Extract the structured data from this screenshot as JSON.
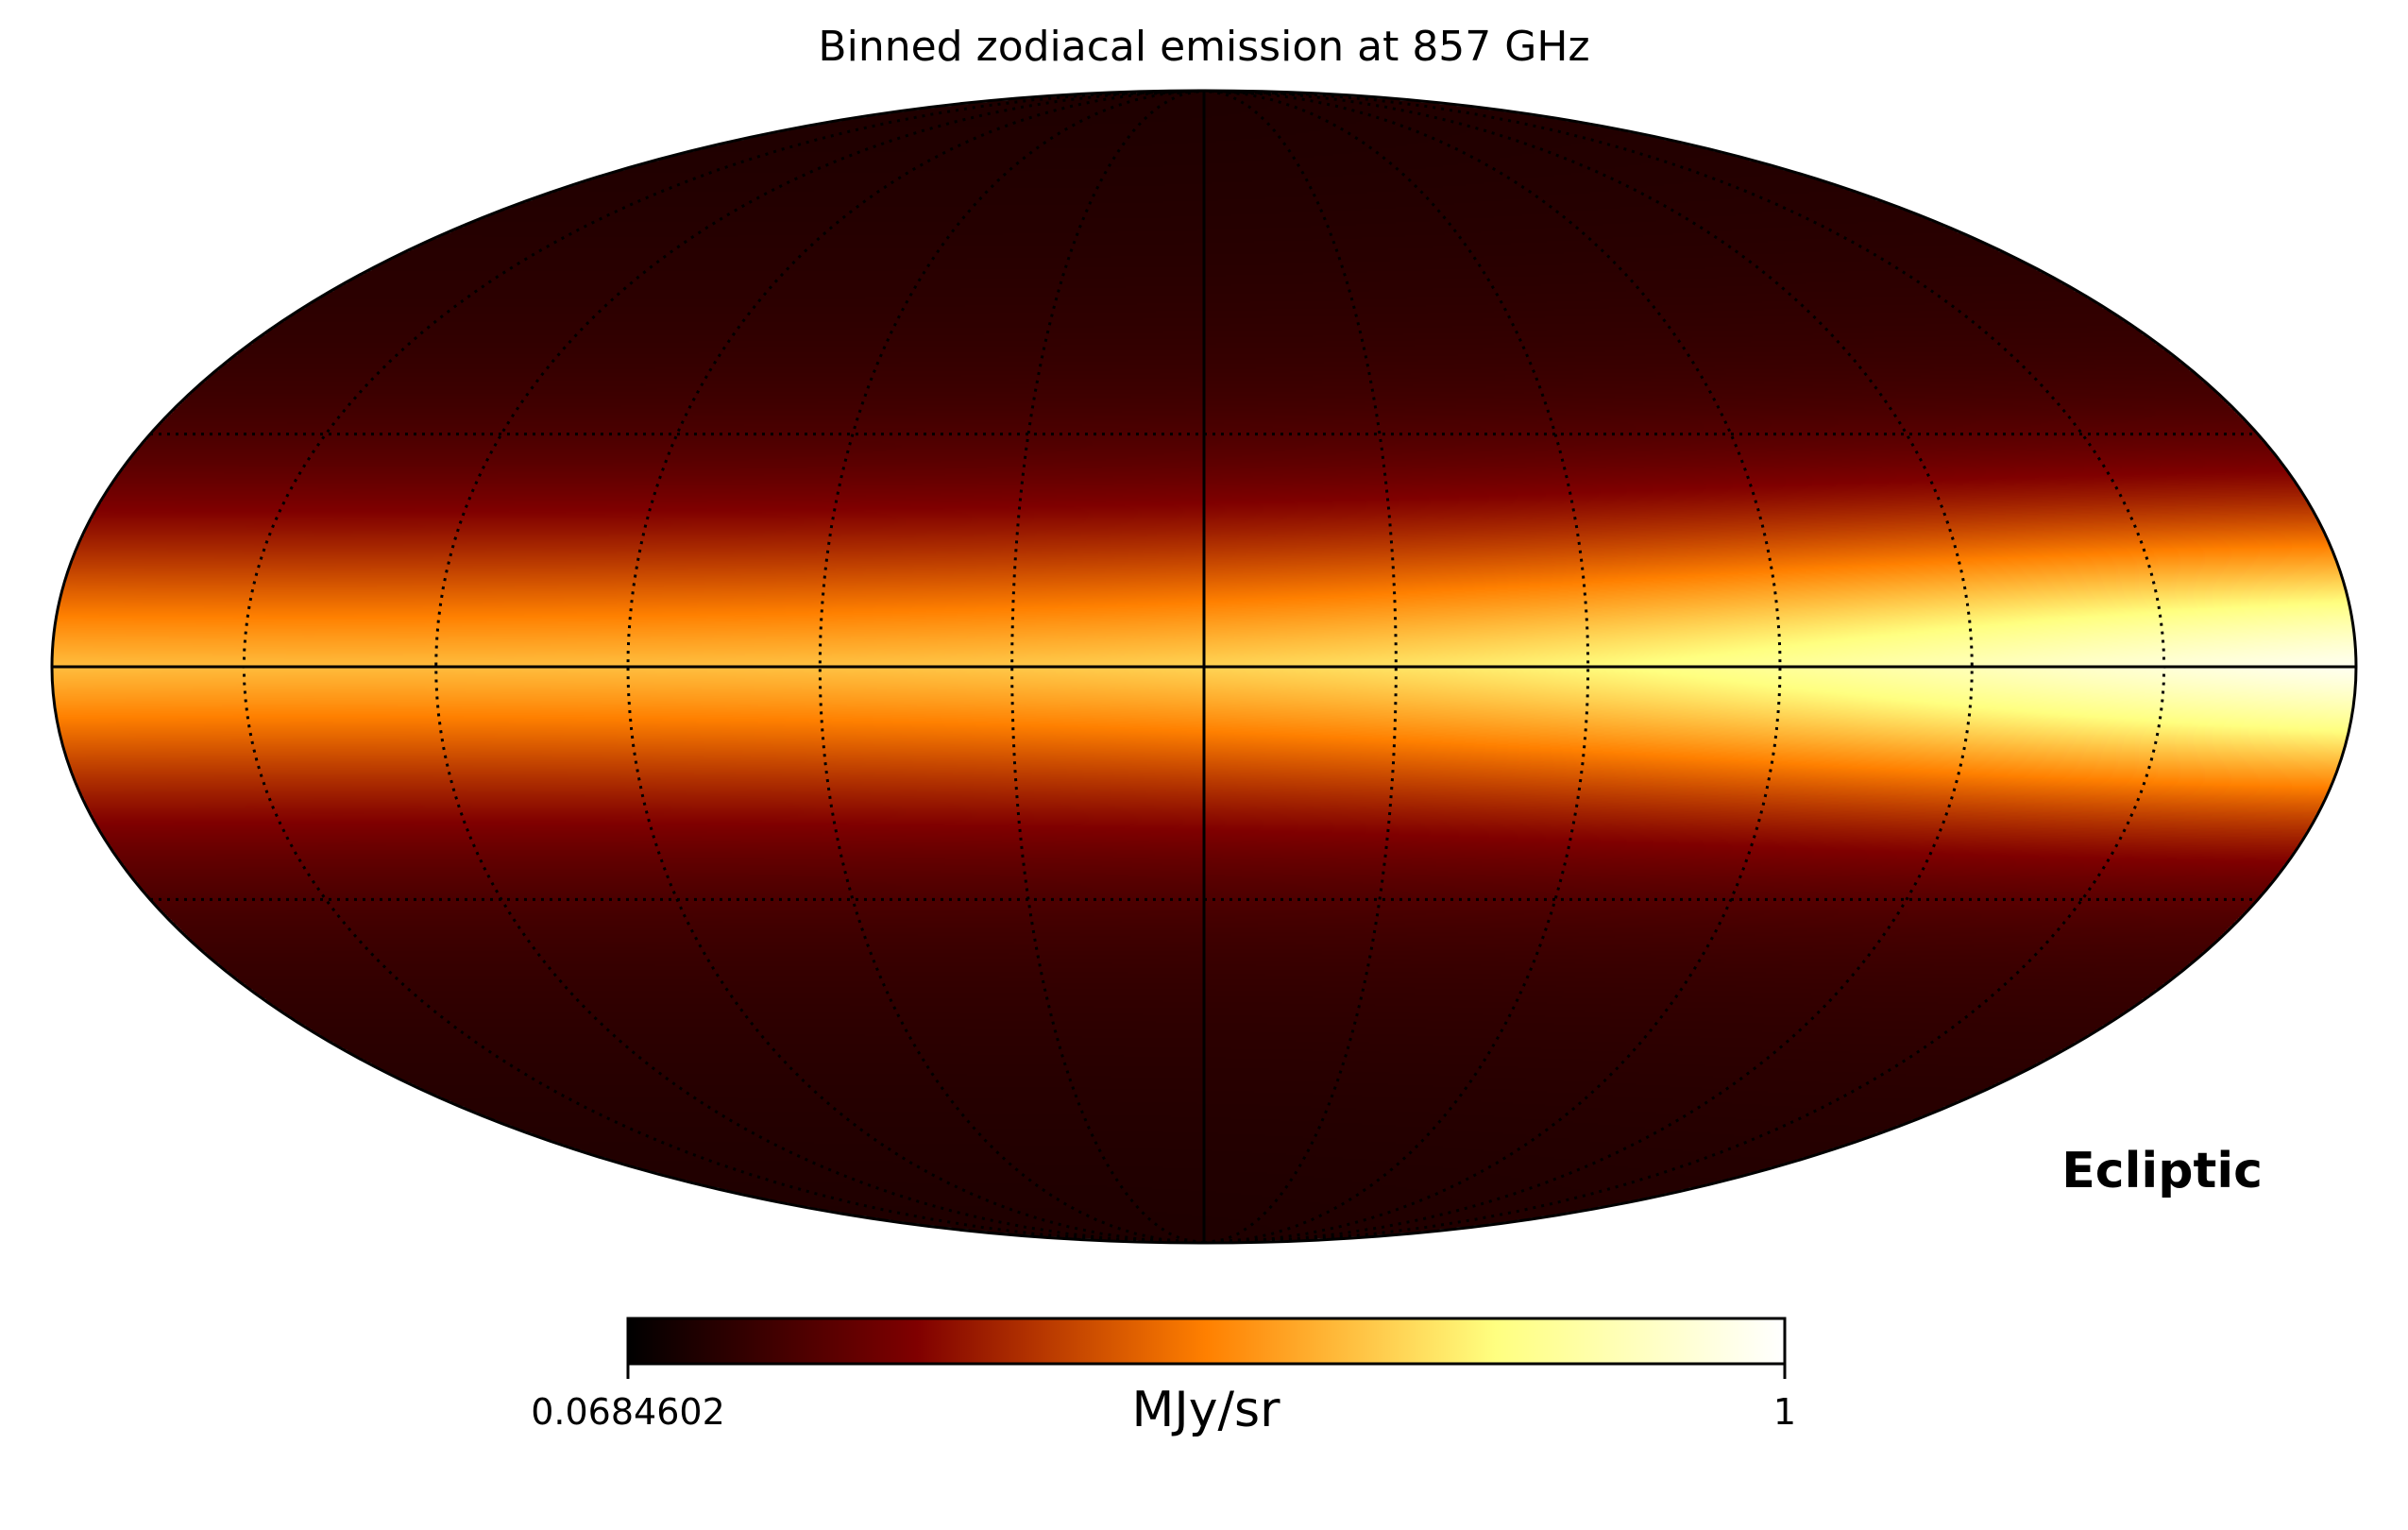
{
  "chart_data": {
    "type": "heatmap",
    "projection": "mollweide",
    "title": "Binned zodiacal emission at 857 GHz",
    "coordinate_system": "Ecliptic",
    "colormap": "afmhot",
    "colormap_stops": [
      "#000000",
      "#800000",
      "#ff8000",
      "#ffff80",
      "#ffffff"
    ],
    "colorbar": {
      "min_label": "0.0684602",
      "max_label": "1",
      "unit": "MJy/sr",
      "min": 0.0684602,
      "max": 1
    },
    "graticule": {
      "latitudes_deg": [
        -30,
        0,
        30
      ],
      "longitudes_deg": [
        -150,
        -120,
        -90,
        -60,
        -30,
        0,
        30,
        60,
        90,
        120,
        150
      ]
    },
    "emission_model": {
      "ecliptic_band_peak_longitude_deg": 110,
      "peak_value": 1,
      "pole_value": 0.0684602
    }
  }
}
